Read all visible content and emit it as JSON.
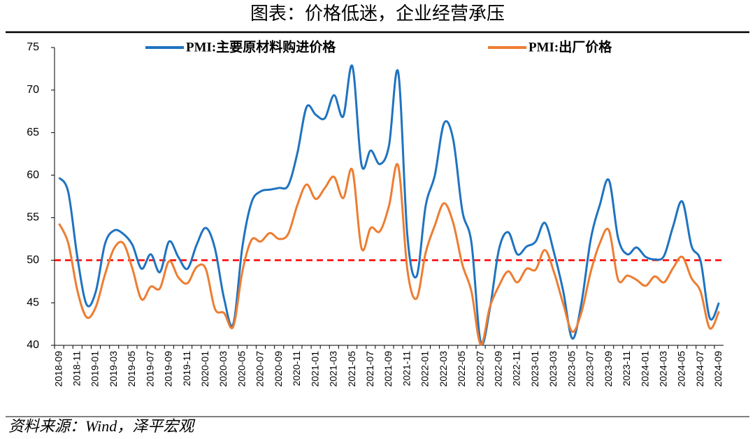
{
  "chart_data": {
    "type": "line",
    "title": "图表：价格低迷，企业经营承压",
    "source": "资料来源：Wind，泽平宏观",
    "categories": [
      "2018-09",
      null,
      "2018-11",
      null,
      "2019-01",
      null,
      "2019-03",
      null,
      "2019-05",
      null,
      "2019-07",
      null,
      "2019-09",
      null,
      "2019-11",
      null,
      "2020-01",
      null,
      "2020-03",
      null,
      "2020-05",
      null,
      "2020-07",
      null,
      "2020-09",
      null,
      "2020-11",
      null,
      "2021-01",
      null,
      "2021-03",
      null,
      "2021-05",
      null,
      "2021-07",
      null,
      "2021-09",
      null,
      "2021-11",
      null,
      "2022-01",
      null,
      "2022-03",
      null,
      "2022-05",
      null,
      "2022-07",
      null,
      "2022-09",
      null,
      "2022-11",
      null,
      "2023-01",
      null,
      "2023-03",
      null,
      "2023-05",
      null,
      "2023-07",
      null,
      "2023-09",
      null,
      "2023-11",
      null,
      "2024-01",
      null,
      "2024-03",
      null,
      "2024-05",
      null,
      "2024-07",
      null,
      "2024-09"
    ],
    "series": [
      {
        "name": "PMI:主要原材料购进价格",
        "color": "#1f73c0",
        "values": [
          59.7,
          58.0,
          50.3,
          44.8,
          46.3,
          51.9,
          53.5,
          53.1,
          51.8,
          49.0,
          50.7,
          48.6,
          52.2,
          50.4,
          49.0,
          51.8,
          53.8,
          51.4,
          45.5,
          42.5,
          51.6,
          56.8,
          58.1,
          58.3,
          58.5,
          58.8,
          62.6,
          68.0,
          67.1,
          66.7,
          69.4,
          66.9,
          72.8,
          61.2,
          62.9,
          61.3,
          63.5,
          72.1,
          52.9,
          48.1,
          56.4,
          60.0,
          66.1,
          64.2,
          55.8,
          52.0,
          40.4,
          44.3,
          51.3,
          53.3,
          50.7,
          51.6,
          52.2,
          54.4,
          50.9,
          46.4,
          40.8,
          45.0,
          52.4,
          56.5,
          59.4,
          52.6,
          50.7,
          51.5,
          50.4,
          50.1,
          50.5,
          54.0,
          56.9,
          51.7,
          49.9,
          43.2,
          45.0
        ]
      },
      {
        "name": "PMI:出厂价格",
        "color": "#ed7d31",
        "values": [
          54.3,
          52.0,
          46.4,
          43.3,
          44.5,
          48.3,
          51.4,
          52.0,
          49.0,
          45.4,
          46.9,
          46.7,
          49.9,
          48.0,
          47.3,
          49.2,
          49.0,
          44.3,
          43.8,
          42.2,
          48.7,
          52.4,
          52.2,
          53.2,
          52.5,
          53.1,
          56.5,
          58.9,
          57.2,
          58.5,
          59.8,
          57.3,
          60.6,
          51.4,
          53.8,
          53.4,
          56.4,
          61.1,
          48.9,
          45.5,
          50.9,
          54.1,
          56.7,
          54.4,
          49.5,
          46.3,
          40.1,
          44.5,
          47.0,
          48.7,
          47.4,
          49.0,
          48.9,
          51.2,
          48.6,
          44.9,
          41.6,
          43.9,
          48.6,
          52.0,
          53.5,
          47.7,
          48.2,
          47.7,
          47.0,
          48.1,
          47.4,
          49.1,
          50.4,
          47.9,
          46.3,
          42.0,
          44.0
        ]
      }
    ],
    "reference_line": {
      "value": 50,
      "color": "#ff0000"
    },
    "ylim": [
      40,
      75
    ],
    "yticks": [
      40,
      45,
      50,
      55,
      60,
      65,
      70,
      75
    ],
    "legend": "top"
  }
}
